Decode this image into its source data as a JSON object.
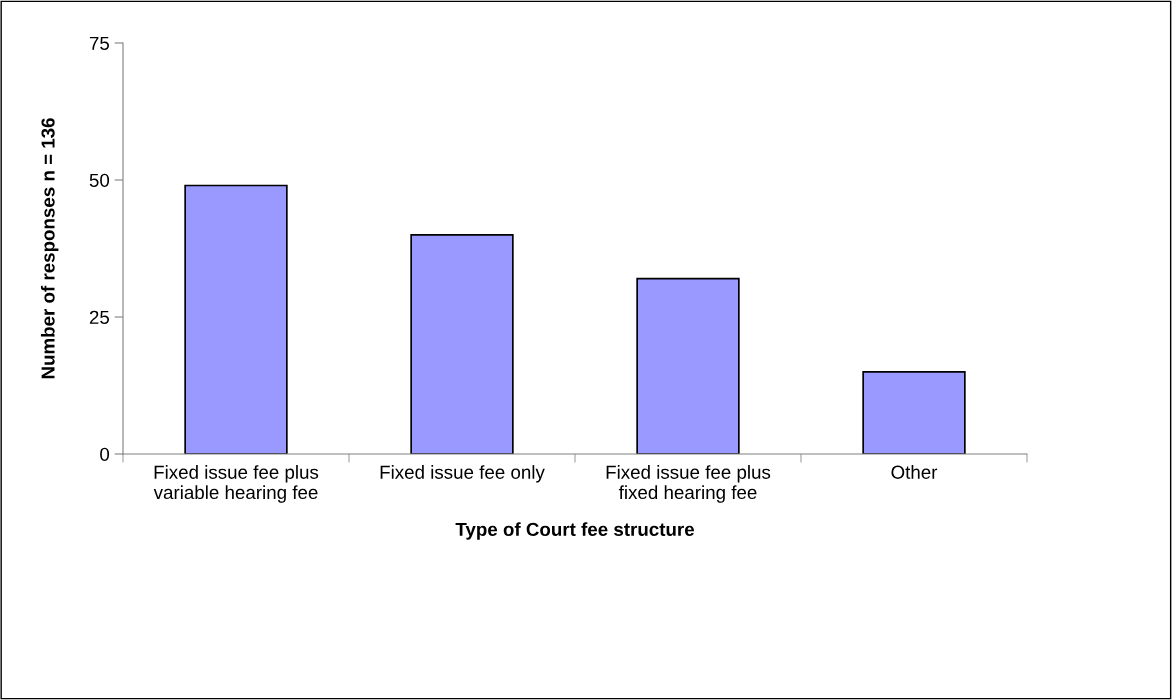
{
  "chart_data": {
    "type": "bar",
    "xlabel": "Type of Court fee structure",
    "ylabel": "Number of responses n = 136",
    "categories": [
      "Fixed issue fee plus\nvariable hearing fee",
      "Fixed issue fee only",
      "Fixed issue fee plus\nfixed hearing fee",
      "Other"
    ],
    "values": [
      49,
      40,
      32,
      15
    ],
    "color": "#9999ff",
    "ylim": [
      0,
      75
    ],
    "yticks": [
      0,
      25,
      50,
      75
    ],
    "grid": false
  }
}
